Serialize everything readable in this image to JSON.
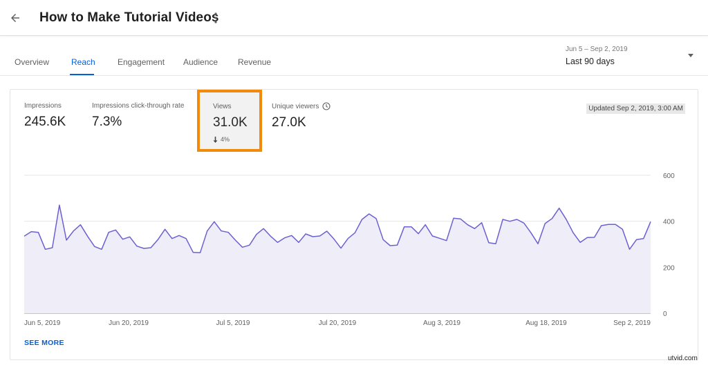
{
  "header": {
    "title": "How to Make Tutorial Videos",
    "back_icon": "arrow-left-icon",
    "more_icon": "more-vert-icon"
  },
  "tabs": [
    {
      "label": "Overview",
      "active": false
    },
    {
      "label": "Reach",
      "active": true
    },
    {
      "label": "Engagement",
      "active": false
    },
    {
      "label": "Audience",
      "active": false
    },
    {
      "label": "Revenue",
      "active": false
    }
  ],
  "date_selector": {
    "range": "Jun 5 – Sep 2, 2019",
    "label": "Last 90 days"
  },
  "metrics": [
    {
      "label": "Impressions",
      "value": "245.6K"
    },
    {
      "label": "Impressions click-through rate",
      "value": "7.3%"
    },
    {
      "label": "Views",
      "value": "31.0K",
      "delta": "4%",
      "selected": true
    },
    {
      "label": "Unique viewers",
      "value": "27.0K",
      "icon": "clock-icon"
    }
  ],
  "updated_text": "Updated Sep 2, 2019, 3:00 AM",
  "see_more": "SEE MORE",
  "watermark": "utvid.com",
  "colors": {
    "accent": "#065fd4",
    "line": "#6a60cf",
    "fill": "#eeedf8",
    "highlight": "#f28b0c"
  },
  "chart_data": {
    "type": "area",
    "y_ticks": [
      "600",
      "400",
      "200",
      "0"
    ],
    "x_tick_labels": [
      "Jun 5, 2019",
      "Jun 20, 2019",
      "Jul 5, 2019",
      "Jul 20, 2019",
      "Aug 3, 2019",
      "Aug 18, 2019",
      "Sep 2, 2019"
    ],
    "ylim": [
      0,
      600
    ],
    "x_start": "Jun 5, 2019",
    "x_end": "Sep 2, 2019",
    "grid": true,
    "series": [
      {
        "values": [
          335,
          355,
          352,
          278,
          285,
          470,
          318,
          358,
          385,
          335,
          290,
          278,
          352,
          362,
          322,
          332,
          292,
          282,
          285,
          320,
          365,
          325,
          338,
          325,
          265,
          263,
          358,
          398,
          358,
          352,
          318,
          287,
          296,
          343,
          368,
          335,
          308,
          328,
          338,
          308,
          345,
          333,
          336,
          357,
          323,
          283,
          325,
          350,
          408,
          432,
          412,
          320,
          294,
          296,
          376,
          376,
          346,
          385,
          336,
          326,
          316,
          413,
          410,
          385,
          368,
          394,
          307,
          302,
          408,
          400,
          408,
          392,
          350,
          302,
          390,
          412,
          457,
          409,
          350,
          308,
          329,
          330,
          381,
          386,
          386,
          365,
          278,
          320,
          325,
          398
        ]
      }
    ]
  }
}
